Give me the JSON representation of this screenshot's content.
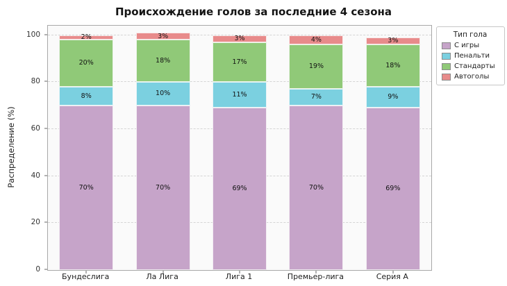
{
  "title": "Происхождение голов за последние 4 сезона",
  "ylabel": "Распределение (%)",
  "legend": {
    "title": "Тип гола"
  },
  "chart_data": {
    "type": "bar",
    "stacked": true,
    "title": "Происхождение голов за последние 4 сезона",
    "xlabel": "",
    "ylabel": "Распределение (%)",
    "categories": [
      "Бундеслига",
      "Ла Лига",
      "Лига 1",
      "Премьер-лига",
      "Серия А"
    ],
    "series": [
      {
        "name": "С игры",
        "color": "#c6a4c9",
        "values": [
          70,
          70,
          69,
          70,
          69
        ]
      },
      {
        "name": "Пенальти",
        "color": "#7bd0e0",
        "values": [
          8,
          10,
          11,
          7,
          9
        ]
      },
      {
        "name": "Стандарты",
        "color": "#90c978",
        "values": [
          20,
          18,
          17,
          19,
          18
        ]
      },
      {
        "name": "Автоголы",
        "color": "#e88b8b",
        "values": [
          2,
          3,
          3,
          4,
          3
        ]
      }
    ],
    "unit": "%",
    "yticks": [
      0,
      20,
      40,
      60,
      80,
      100
    ],
    "ylim": [
      0,
      104
    ],
    "grid": true,
    "grid_style": "dashed",
    "legend_title": "Тип гола",
    "legend_position": "upper right outside"
  }
}
